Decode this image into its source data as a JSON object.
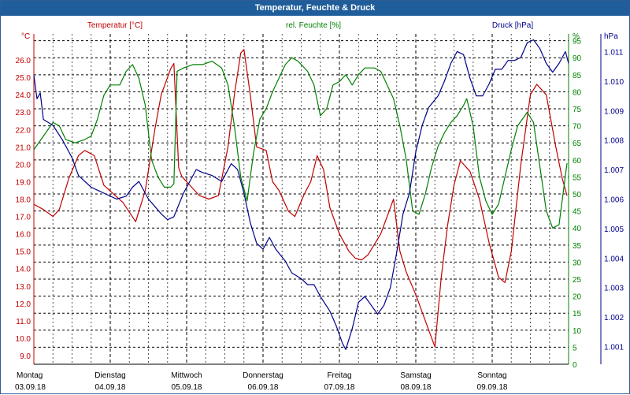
{
  "window": {
    "title": "Temperatur, Feuchte & Druck"
  },
  "colors": {
    "title_bg": "#1f5d9b",
    "temp": "#c00000",
    "hum": "#008000",
    "press": "#00008b",
    "grid": "#000000"
  },
  "chart_data": {
    "type": "line",
    "title": "Temperatur, Feuchte & Druck",
    "grid": true,
    "legend": "top",
    "x_axis": {
      "range": [
        "03.09.18 00:00",
        "09.09.18 24:00"
      ],
      "days": [
        {
          "weekday": "Montag",
          "date": "03.09.18"
        },
        {
          "weekday": "Dienstag",
          "date": "04.09.18"
        },
        {
          "weekday": "Mittwoch",
          "date": "05.09.18"
        },
        {
          "weekday": "Donnerstag",
          "date": "06.09.18"
        },
        {
          "weekday": "Freitag",
          "date": "07.09.18"
        },
        {
          "weekday": "Samstag",
          "date": "08.09.18"
        },
        {
          "weekday": "Sonntag",
          "date": "09.09.18"
        }
      ]
    },
    "axes": {
      "temp": {
        "unit": "°C",
        "label": "Temperatur [°C]",
        "ylim": [
          8.5,
          27.5
        ],
        "ticks": [
          "9.0",
          "10.0",
          "11.0",
          "12.0",
          "13.0",
          "14.0",
          "15.0",
          "16.0",
          "17.0",
          "18.0",
          "19.0",
          "20.0",
          "21.0",
          "22.0",
          "23.0",
          "24.0",
          "25.0",
          "26.0"
        ]
      },
      "hum": {
        "unit": "%",
        "label": "rel. Feuchte [%]",
        "ylim": [
          0,
          97
        ],
        "ticks": [
          "0",
          "5",
          "10",
          "15",
          "20",
          "25",
          "30",
          "35",
          "40",
          "45",
          "50",
          "55",
          "60",
          "65",
          "70",
          "75",
          "80",
          "85",
          "90",
          "95"
        ]
      },
      "press": {
        "unit": "hPa",
        "label": "Druck [hPa]",
        "ylim": [
          1.0004,
          1.0116
        ],
        "ticks": [
          "1.001",
          "1.002",
          "1.003",
          "1.004",
          "1.005",
          "1.006",
          "1.007",
          "1.008",
          "1.009",
          "1.010",
          "1.011"
        ]
      }
    },
    "series": [
      {
        "name": "Temperatur [°C]",
        "axis": "temp",
        "points": [
          [
            "03.09.18 00:00",
            17.7
          ],
          [
            "03.09.18 03:00",
            17.4
          ],
          [
            "03.09.18 06:00",
            17.0
          ],
          [
            "03.09.18 08:00",
            17.4
          ],
          [
            "03.09.18 11:00",
            19.2
          ],
          [
            "03.09.18 14:00",
            20.5
          ],
          [
            "03.09.18 16:00",
            20.8
          ],
          [
            "03.09.18 19:00",
            20.5
          ],
          [
            "03.09.18 22:00",
            18.8
          ],
          [
            "04.09.18 01:00",
            18.3
          ],
          [
            "04.09.18 04:00",
            17.8
          ],
          [
            "04.09.18 08:00",
            16.7
          ],
          [
            "04.09.18 11:00",
            18.5
          ],
          [
            "04.09.18 14:00",
            22.0
          ],
          [
            "04.09.18 16:00",
            24.0
          ],
          [
            "04.09.18 19:00",
            25.5
          ],
          [
            "04.09.18 20:00",
            25.8
          ],
          [
            "04.09.18 21:30",
            19.8
          ],
          [
            "04.09.18 22:30",
            19.3
          ],
          [
            "05.09.18 01:00",
            18.8
          ],
          [
            "05.09.18 04:00",
            18.2
          ],
          [
            "05.09.18 07:00",
            18.0
          ],
          [
            "05.09.18 10:00",
            18.2
          ],
          [
            "05.09.18 13:00",
            21.0
          ],
          [
            "05.09.18 15:00",
            24.0
          ],
          [
            "05.09.18 17:00",
            26.4
          ],
          [
            "05.09.18 18:00",
            26.6
          ],
          [
            "05.09.18 20:00",
            24.0
          ],
          [
            "05.09.18 22:00",
            21.0
          ],
          [
            "06.09.18 01:00",
            20.8
          ],
          [
            "06.09.18 03:00",
            19.0
          ],
          [
            "06.09.18 05:00",
            18.5
          ],
          [
            "06.09.18 08:00",
            17.3
          ],
          [
            "06.09.18 10:00",
            17.0
          ],
          [
            "06.09.18 13:00",
            18.3
          ],
          [
            "06.09.18 15:00",
            19.0
          ],
          [
            "06.09.18 17:00",
            20.5
          ],
          [
            "06.09.18 19:00",
            19.7
          ],
          [
            "06.09.18 21:00",
            17.5
          ],
          [
            "07.09.18 00:00",
            16.0
          ],
          [
            "07.09.18 03:00",
            15.0
          ],
          [
            "07.09.18 05:00",
            14.6
          ],
          [
            "07.09.18 07:00",
            14.5
          ],
          [
            "07.09.18 09:00",
            14.8
          ],
          [
            "07.09.18 11:00",
            15.4
          ],
          [
            "07.09.18 13:00",
            16.0
          ],
          [
            "07.09.18 15:00",
            17.0
          ],
          [
            "07.09.18 17:00",
            18.0
          ],
          [
            "07.09.18 19:00",
            15.0
          ],
          [
            "07.09.18 21:00",
            13.8
          ],
          [
            "08.09.18 00:00",
            12.5
          ],
          [
            "08.09.18 03:00",
            11.0
          ],
          [
            "08.09.18 05:00",
            10.0
          ],
          [
            "08.09.18 06:00",
            9.5
          ],
          [
            "08.09.18 08:00",
            13.5
          ],
          [
            "08.09.18 10:00",
            16.5
          ],
          [
            "08.09.18 12:00",
            18.8
          ],
          [
            "08.09.18 14:00",
            20.2
          ],
          [
            "08.09.18 17:00",
            19.6
          ],
          [
            "08.09.18 20:00",
            18.0
          ],
          [
            "08.09.18 23:00",
            15.5
          ],
          [
            "09.09.18 02:00",
            13.5
          ],
          [
            "09.09.18 04:00",
            13.2
          ],
          [
            "09.09.18 06:00",
            15.0
          ],
          [
            "09.09.18 09:00",
            20.0
          ],
          [
            "09.09.18 12:00",
            24.0
          ],
          [
            "09.09.18 14:00",
            24.6
          ],
          [
            "09.09.18 17:00",
            24.0
          ],
          [
            "09.09.18 20:00",
            21.0
          ],
          [
            "09.09.18 22:00",
            19.2
          ],
          [
            "09.09.18 23:30",
            18.2
          ]
        ]
      },
      {
        "name": "rel. Feuchte [%]",
        "axis": "hum",
        "points": [
          [
            "03.09.18 00:00",
            63
          ],
          [
            "03.09.18 03:00",
            67
          ],
          [
            "03.09.18 06:00",
            71
          ],
          [
            "03.09.18 08:00",
            70
          ],
          [
            "03.09.18 10:00",
            66
          ],
          [
            "03.09.18 13:00",
            65
          ],
          [
            "03.09.18 16:00",
            66
          ],
          [
            "03.09.18 18:00",
            67
          ],
          [
            "03.09.18 20:00",
            72
          ],
          [
            "03.09.18 22:00",
            79
          ],
          [
            "04.09.18 00:00",
            82
          ],
          [
            "04.09.18 03:00",
            82
          ],
          [
            "04.09.18 05:00",
            86
          ],
          [
            "04.09.18 07:00",
            88
          ],
          [
            "04.09.18 09:00",
            84
          ],
          [
            "04.09.18 11:00",
            76
          ],
          [
            "04.09.18 13:00",
            60
          ],
          [
            "04.09.18 15:00",
            55
          ],
          [
            "04.09.18 17:00",
            52
          ],
          [
            "04.09.18 19:00",
            52
          ],
          [
            "04.09.18 20:00",
            53
          ],
          [
            "04.09.18 21:00",
            86
          ],
          [
            "04.09.18 23:00",
            87
          ],
          [
            "05.09.18 02:00",
            88
          ],
          [
            "05.09.18 05:00",
            88
          ],
          [
            "05.09.18 08:00",
            89
          ],
          [
            "05.09.18 11:00",
            87
          ],
          [
            "05.09.18 13:00",
            82
          ],
          [
            "05.09.18 15:00",
            70
          ],
          [
            "05.09.18 17:00",
            55
          ],
          [
            "05.09.18 19:00",
            48
          ],
          [
            "05.09.18 21:00",
            62
          ],
          [
            "05.09.18 23:00",
            72
          ],
          [
            "06.09.18 01:00",
            75
          ],
          [
            "06.09.18 03:00",
            80
          ],
          [
            "06.09.18 05:00",
            84
          ],
          [
            "06.09.18 07:00",
            88
          ],
          [
            "06.09.18 09:00",
            90
          ],
          [
            "06.09.18 11:00",
            89
          ],
          [
            "06.09.18 14:00",
            86
          ],
          [
            "06.09.18 16:00",
            82
          ],
          [
            "06.09.18 18:00",
            73
          ],
          [
            "06.09.18 20:00",
            75
          ],
          [
            "06.09.18 22:00",
            82
          ],
          [
            "07.09.18 00:00",
            83
          ],
          [
            "07.09.18 02:00",
            85
          ],
          [
            "07.09.18 04:00",
            82
          ],
          [
            "07.09.18 06:00",
            85
          ],
          [
            "07.09.18 08:00",
            87
          ],
          [
            "07.09.18 11:00",
            87
          ],
          [
            "07.09.18 13:00",
            86
          ],
          [
            "07.09.18 15:00",
            82
          ],
          [
            "07.09.18 17:00",
            78
          ],
          [
            "07.09.18 19:00",
            70
          ],
          [
            "07.09.18 21:00",
            60
          ],
          [
            "07.09.18 23:00",
            45
          ],
          [
            "08.09.18 01:00",
            44
          ],
          [
            "08.09.18 03:00",
            50
          ],
          [
            "08.09.18 05:00",
            58
          ],
          [
            "08.09.18 07:00",
            64
          ],
          [
            "08.09.18 09:00",
            68
          ],
          [
            "08.09.18 11:00",
            71
          ],
          [
            "08.09.18 13:00",
            73
          ],
          [
            "08.09.18 15:00",
            76
          ],
          [
            "08.09.18 16:00",
            78
          ],
          [
            "08.09.18 18:00",
            70
          ],
          [
            "08.09.18 20:00",
            55
          ],
          [
            "08.09.18 22:00",
            48
          ],
          [
            "09.09.18 00:00",
            44
          ],
          [
            "09.09.18 02:00",
            47
          ],
          [
            "09.09.18 04:00",
            55
          ],
          [
            "09.09.18 06:00",
            63
          ],
          [
            "09.09.18 08:00",
            70
          ],
          [
            "09.09.18 11:00",
            74
          ],
          [
            "09.09.18 13:00",
            71
          ],
          [
            "09.09.18 15:00",
            58
          ],
          [
            "09.09.18 17:00",
            45
          ],
          [
            "09.09.18 19:00",
            40
          ],
          [
            "09.09.18 21:00",
            41
          ],
          [
            "09.09.18 23:30",
            59
          ]
        ]
      },
      {
        "name": "Druck [hPa]",
        "axis": "press",
        "points": [
          [
            "03.09.18 00:00",
            1.0102
          ],
          [
            "03.09.18 01:00",
            1.0094
          ],
          [
            "03.09.18 02:00",
            1.0096
          ],
          [
            "03.09.18 03:00",
            1.0087
          ],
          [
            "03.09.18 06:00",
            1.0085
          ],
          [
            "03.09.18 09:00",
            1.008
          ],
          [
            "03.09.18 12:00",
            1.0074
          ],
          [
            "03.09.18 14:00",
            1.0068
          ],
          [
            "03.09.18 18:00",
            1.0064
          ],
          [
            "03.09.18 22:00",
            1.0062
          ],
          [
            "04.09.18 02:00",
            1.006
          ],
          [
            "04.09.18 05:00",
            1.0061
          ],
          [
            "04.09.18 07:00",
            1.0064
          ],
          [
            "04.09.18 09:00",
            1.0066
          ],
          [
            "04.09.18 12:00",
            1.006
          ],
          [
            "04.09.18 16:00",
            1.0055
          ],
          [
            "04.09.18 18:00",
            1.0053
          ],
          [
            "04.09.18 20:00",
            1.0054
          ],
          [
            "04.09.18 23:00",
            1.0062
          ],
          [
            "05.09.18 03:00",
            1.007
          ],
          [
            "05.09.18 05:00",
            1.0069
          ],
          [
            "05.09.18 08:00",
            1.0068
          ],
          [
            "05.09.18 11:00",
            1.0066
          ],
          [
            "05.09.18 14:00",
            1.0072
          ],
          [
            "05.09.18 16:00",
            1.007
          ],
          [
            "05.09.18 18:00",
            1.0062
          ],
          [
            "05.09.18 20:00",
            1.0052
          ],
          [
            "05.09.18 22:00",
            1.0045
          ],
          [
            "06.09.18 00:00",
            1.0043
          ],
          [
            "06.09.18 02:00",
            1.0047
          ],
          [
            "06.09.18 04:00",
            1.0043
          ],
          [
            "06.09.18 07:00",
            1.0039
          ],
          [
            "06.09.18 09:00",
            1.0035
          ],
          [
            "06.09.18 12:00",
            1.0033
          ],
          [
            "06.09.18 14:00",
            1.0031
          ],
          [
            "06.09.18 16:00",
            1.0031
          ],
          [
            "06.09.18 18:00",
            1.0027
          ],
          [
            "06.09.18 21:00",
            1.0022
          ],
          [
            "06.09.18 23:00",
            1.0017
          ],
          [
            "07.09.18 01:00",
            1.0011
          ],
          [
            "07.09.18 02:00",
            1.0009
          ],
          [
            "07.09.18 04:00",
            1.0016
          ],
          [
            "07.09.18 06:00",
            1.0025
          ],
          [
            "07.09.18 08:00",
            1.0027
          ],
          [
            "07.09.18 10:00",
            1.0024
          ],
          [
            "07.09.18 12:00",
            1.0021
          ],
          [
            "07.09.18 14:00",
            1.0024
          ],
          [
            "07.09.18 16:00",
            1.003
          ],
          [
            "07.09.18 18:00",
            1.0042
          ],
          [
            "07.09.18 20:00",
            1.0055
          ],
          [
            "07.09.18 22:00",
            1.0062
          ],
          [
            "08.09.18 00:00",
            1.0076
          ],
          [
            "08.09.18 02:00",
            1.0085
          ],
          [
            "08.09.18 04:00",
            1.0091
          ],
          [
            "08.09.18 07:00",
            1.0095
          ],
          [
            "08.09.18 09:00",
            1.01
          ],
          [
            "08.09.18 11:00",
            1.0106
          ],
          [
            "08.09.18 13:00",
            1.011
          ],
          [
            "08.09.18 15:00",
            1.0109
          ],
          [
            "08.09.18 17:00",
            1.0101
          ],
          [
            "08.09.18 19:00",
            1.0095
          ],
          [
            "08.09.18 21:00",
            1.0095
          ],
          [
            "08.09.18 23:00",
            1.0099
          ],
          [
            "09.09.18 01:00",
            1.0104
          ],
          [
            "09.09.18 03:00",
            1.0104
          ],
          [
            "09.09.18 05:00",
            1.0107
          ],
          [
            "09.09.18 07:00",
            1.0107
          ],
          [
            "09.09.18 09:00",
            1.0108
          ],
          [
            "09.09.18 11:00",
            1.0113
          ],
          [
            "09.09.18 13:00",
            1.0114
          ],
          [
            "09.09.18 15:00",
            1.0111
          ],
          [
            "09.09.18 17:00",
            1.0106
          ],
          [
            "09.09.18 19:00",
            1.0103
          ],
          [
            "09.09.18 21:00",
            1.0106
          ],
          [
            "09.09.18 23:00",
            1.011
          ],
          [
            "09.09.18 24:00",
            1.0106
          ]
        ]
      }
    ]
  }
}
